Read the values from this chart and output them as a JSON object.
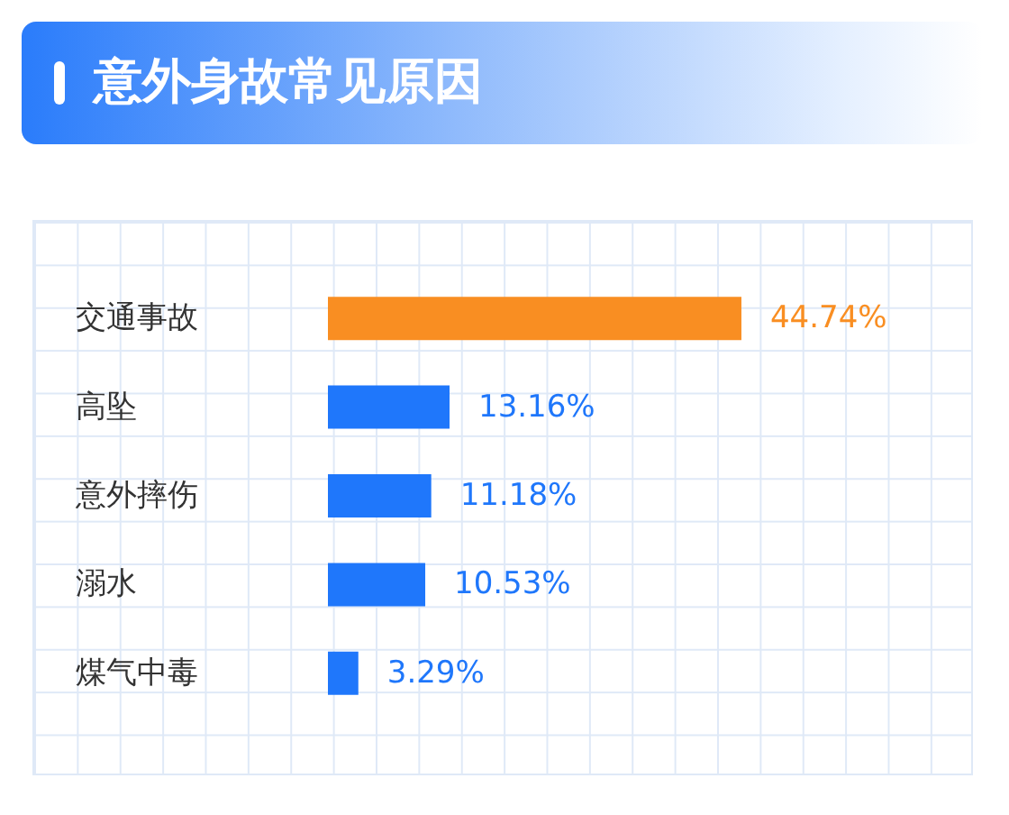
{
  "chart_data": {
    "type": "bar",
    "orientation": "horizontal",
    "title": "意外身故常见原因",
    "categories": [
      "交通事故",
      "高坠",
      "意外摔伤",
      "溺水",
      "煤气中毒"
    ],
    "values": [
      44.74,
      13.16,
      11.18,
      10.53,
      3.29
    ],
    "colors": [
      "#f98e22",
      "#1f77fb",
      "#1f77fb",
      "#1f77fb",
      "#1f77fb"
    ],
    "value_labels": [
      "44.74%",
      "13.16%",
      "11.18%",
      "10.53%",
      "3.29%"
    ]
  }
}
